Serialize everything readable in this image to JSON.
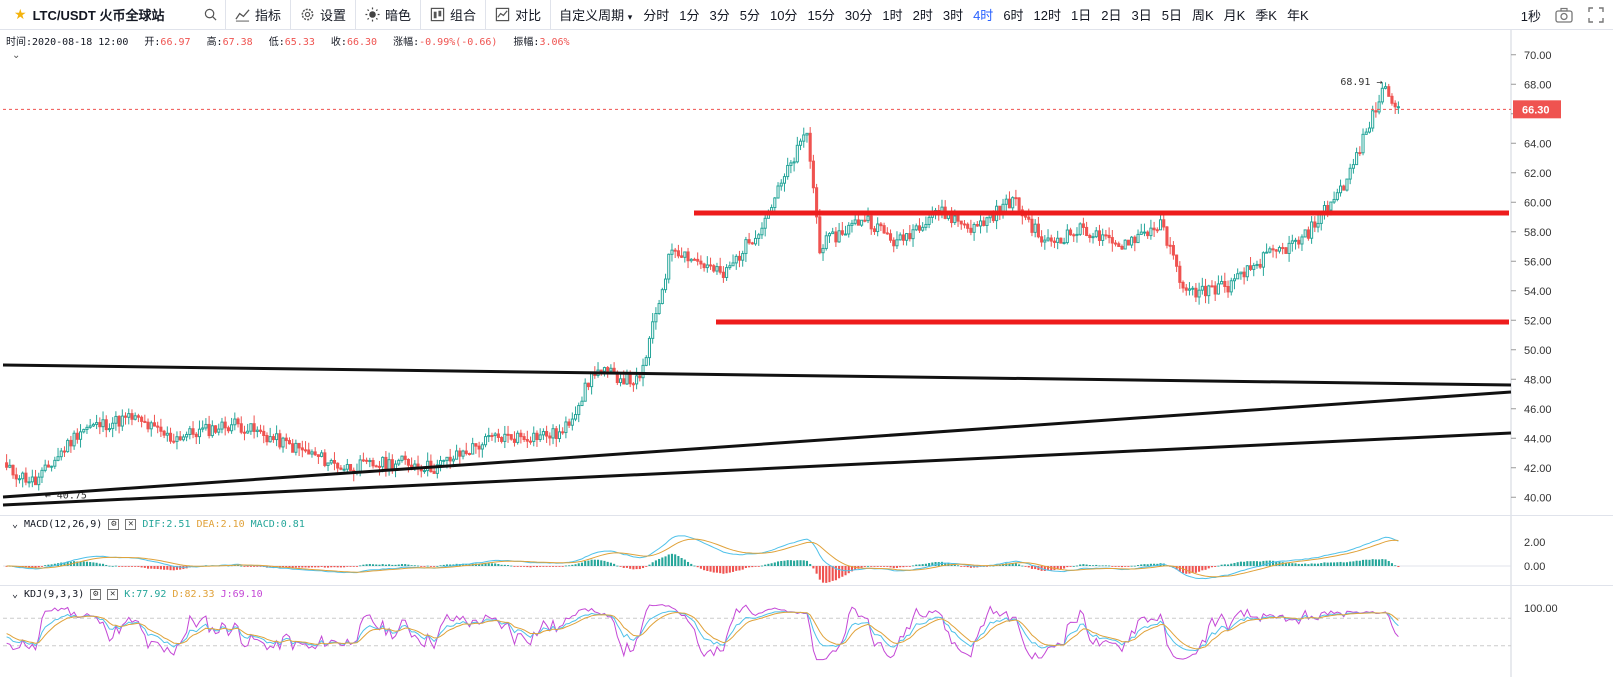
{
  "toolbar": {
    "symbol": "LTC/USDT 火币全球站",
    "tools": [
      {
        "id": "indicators",
        "label": "指标",
        "icon": "indicators-icon"
      },
      {
        "id": "settings",
        "label": "设置",
        "icon": "gear-icon"
      },
      {
        "id": "dark",
        "label": "暗色",
        "icon": "sun-icon"
      },
      {
        "id": "combine",
        "label": "组合",
        "icon": "layout-icon"
      },
      {
        "id": "compare",
        "label": "对比",
        "icon": "compare-icon"
      }
    ],
    "custom_period": "自定义周期",
    "intervals": [
      "分时",
      "1分",
      "3分",
      "5分",
      "10分",
      "15分",
      "30分",
      "1时",
      "2时",
      "3时",
      "4时",
      "6时",
      "12时",
      "1日",
      "2日",
      "3日",
      "5日",
      "周K",
      "月K",
      "季K",
      "年K"
    ],
    "active_interval": "4时",
    "refresh": "1秒"
  },
  "info": {
    "time_label": "时间:",
    "time": "2020-08-18 12:00",
    "open_label": "开:",
    "open": "66.97",
    "high_label": "高:",
    "high": "67.38",
    "low_label": "低:",
    "low": "65.33",
    "close_label": "收:",
    "close": "66.30",
    "change_label": "涨幅:",
    "change": "-0.99%(-0.66)",
    "amp_label": "振幅:",
    "amp": "3.06%"
  },
  "macd": {
    "name": "MACD(12,26,9)",
    "dif": "DIF:2.51",
    "dea": "DEA:2.10",
    "macd": "MACD:0.81",
    "ticks": [
      "2.00",
      "0.00"
    ]
  },
  "kdj": {
    "name": "KDJ(9,3,3)",
    "k": "K:77.92",
    "d": "D:82.33",
    "j": "J:69.10",
    "ticks": [
      "100.00"
    ]
  },
  "colors": {
    "up": "#26a69a",
    "down": "#ef5350",
    "accent": "#2962ff",
    "star": "#f4b30d"
  },
  "chart_data": {
    "type": "candlestick",
    "ylim": [
      39,
      71
    ],
    "y_ticks": [
      "40.00",
      "42.00",
      "44.00",
      "46.00",
      "48.00",
      "50.00",
      "52.00",
      "54.00",
      "56.00",
      "58.00",
      "60.00",
      "62.00",
      "64.00",
      "66.00",
      "68.00",
      "70.00"
    ],
    "last_price": "66.30",
    "max_label": "68.91",
    "min_label": "40.75",
    "series": [
      {
        "segment": 1,
        "from": 42.0,
        "to": 41.0,
        "n": 10
      },
      {
        "segment": 2,
        "from": 41.0,
        "to": 44.6,
        "n": 14
      },
      {
        "segment": 3,
        "from": 44.6,
        "to": 45.4,
        "n": 16
      },
      {
        "segment": 4,
        "from": 45.4,
        "to": 44.0,
        "n": 12
      },
      {
        "segment": 5,
        "from": 44.0,
        "to": 45.0,
        "n": 20
      },
      {
        "segment": 6,
        "from": 45.0,
        "to": 43.6,
        "n": 16
      },
      {
        "segment": 7,
        "from": 43.6,
        "to": 42.0,
        "n": 18
      },
      {
        "segment": 8,
        "from": 42.0,
        "to": 42.4,
        "n": 18
      },
      {
        "segment": 9,
        "from": 42.4,
        "to": 42.0,
        "n": 10
      },
      {
        "segment": 10,
        "from": 42.0,
        "to": 44.0,
        "n": 18
      },
      {
        "segment": 11,
        "from": 44.0,
        "to": 44.3,
        "n": 22
      },
      {
        "segment": 12,
        "from": 44.3,
        "to": 48.6,
        "n": 10
      },
      {
        "segment": 13,
        "from": 48.6,
        "to": 47.8,
        "n": 14
      },
      {
        "segment": 14,
        "from": 47.8,
        "to": 57.0,
        "n": 10
      },
      {
        "segment": 15,
        "from": 57.0,
        "to": 55.0,
        "n": 16
      },
      {
        "segment": 16,
        "from": 55.0,
        "to": 58.5,
        "n": 12
      },
      {
        "segment": 17,
        "from": 58.5,
        "to": 64.8,
        "n": 14
      },
      {
        "segment": 18,
        "from": 64.8,
        "to": 57.0,
        "n": 4
      },
      {
        "segment": 19,
        "from": 57.0,
        "to": 59.0,
        "n": 14
      },
      {
        "segment": 20,
        "from": 59.0,
        "to": 57.2,
        "n": 10
      },
      {
        "segment": 21,
        "from": 57.2,
        "to": 59.5,
        "n": 12
      },
      {
        "segment": 22,
        "from": 59.5,
        "to": 58.2,
        "n": 12
      },
      {
        "segment": 23,
        "from": 58.2,
        "to": 60.2,
        "n": 12
      },
      {
        "segment": 24,
        "from": 60.2,
        "to": 57.2,
        "n": 10
      },
      {
        "segment": 25,
        "from": 57.2,
        "to": 58.2,
        "n": 12
      },
      {
        "segment": 26,
        "from": 58.2,
        "to": 57.0,
        "n": 10
      },
      {
        "segment": 27,
        "from": 57.0,
        "to": 58.5,
        "n": 14
      },
      {
        "segment": 28,
        "from": 58.5,
        "to": 53.8,
        "n": 8
      },
      {
        "segment": 29,
        "from": 53.8,
        "to": 54.4,
        "n": 14
      },
      {
        "segment": 30,
        "from": 54.4,
        "to": 56.2,
        "n": 10
      },
      {
        "segment": 31,
        "from": 56.2,
        "to": 57.4,
        "n": 12
      },
      {
        "segment": 32,
        "from": 57.4,
        "to": 61.5,
        "n": 14
      },
      {
        "segment": 33,
        "from": 61.5,
        "to": 68.0,
        "n": 12
      },
      {
        "segment": 34,
        "from": 68.0,
        "to": 66.3,
        "n": 4
      }
    ]
  }
}
